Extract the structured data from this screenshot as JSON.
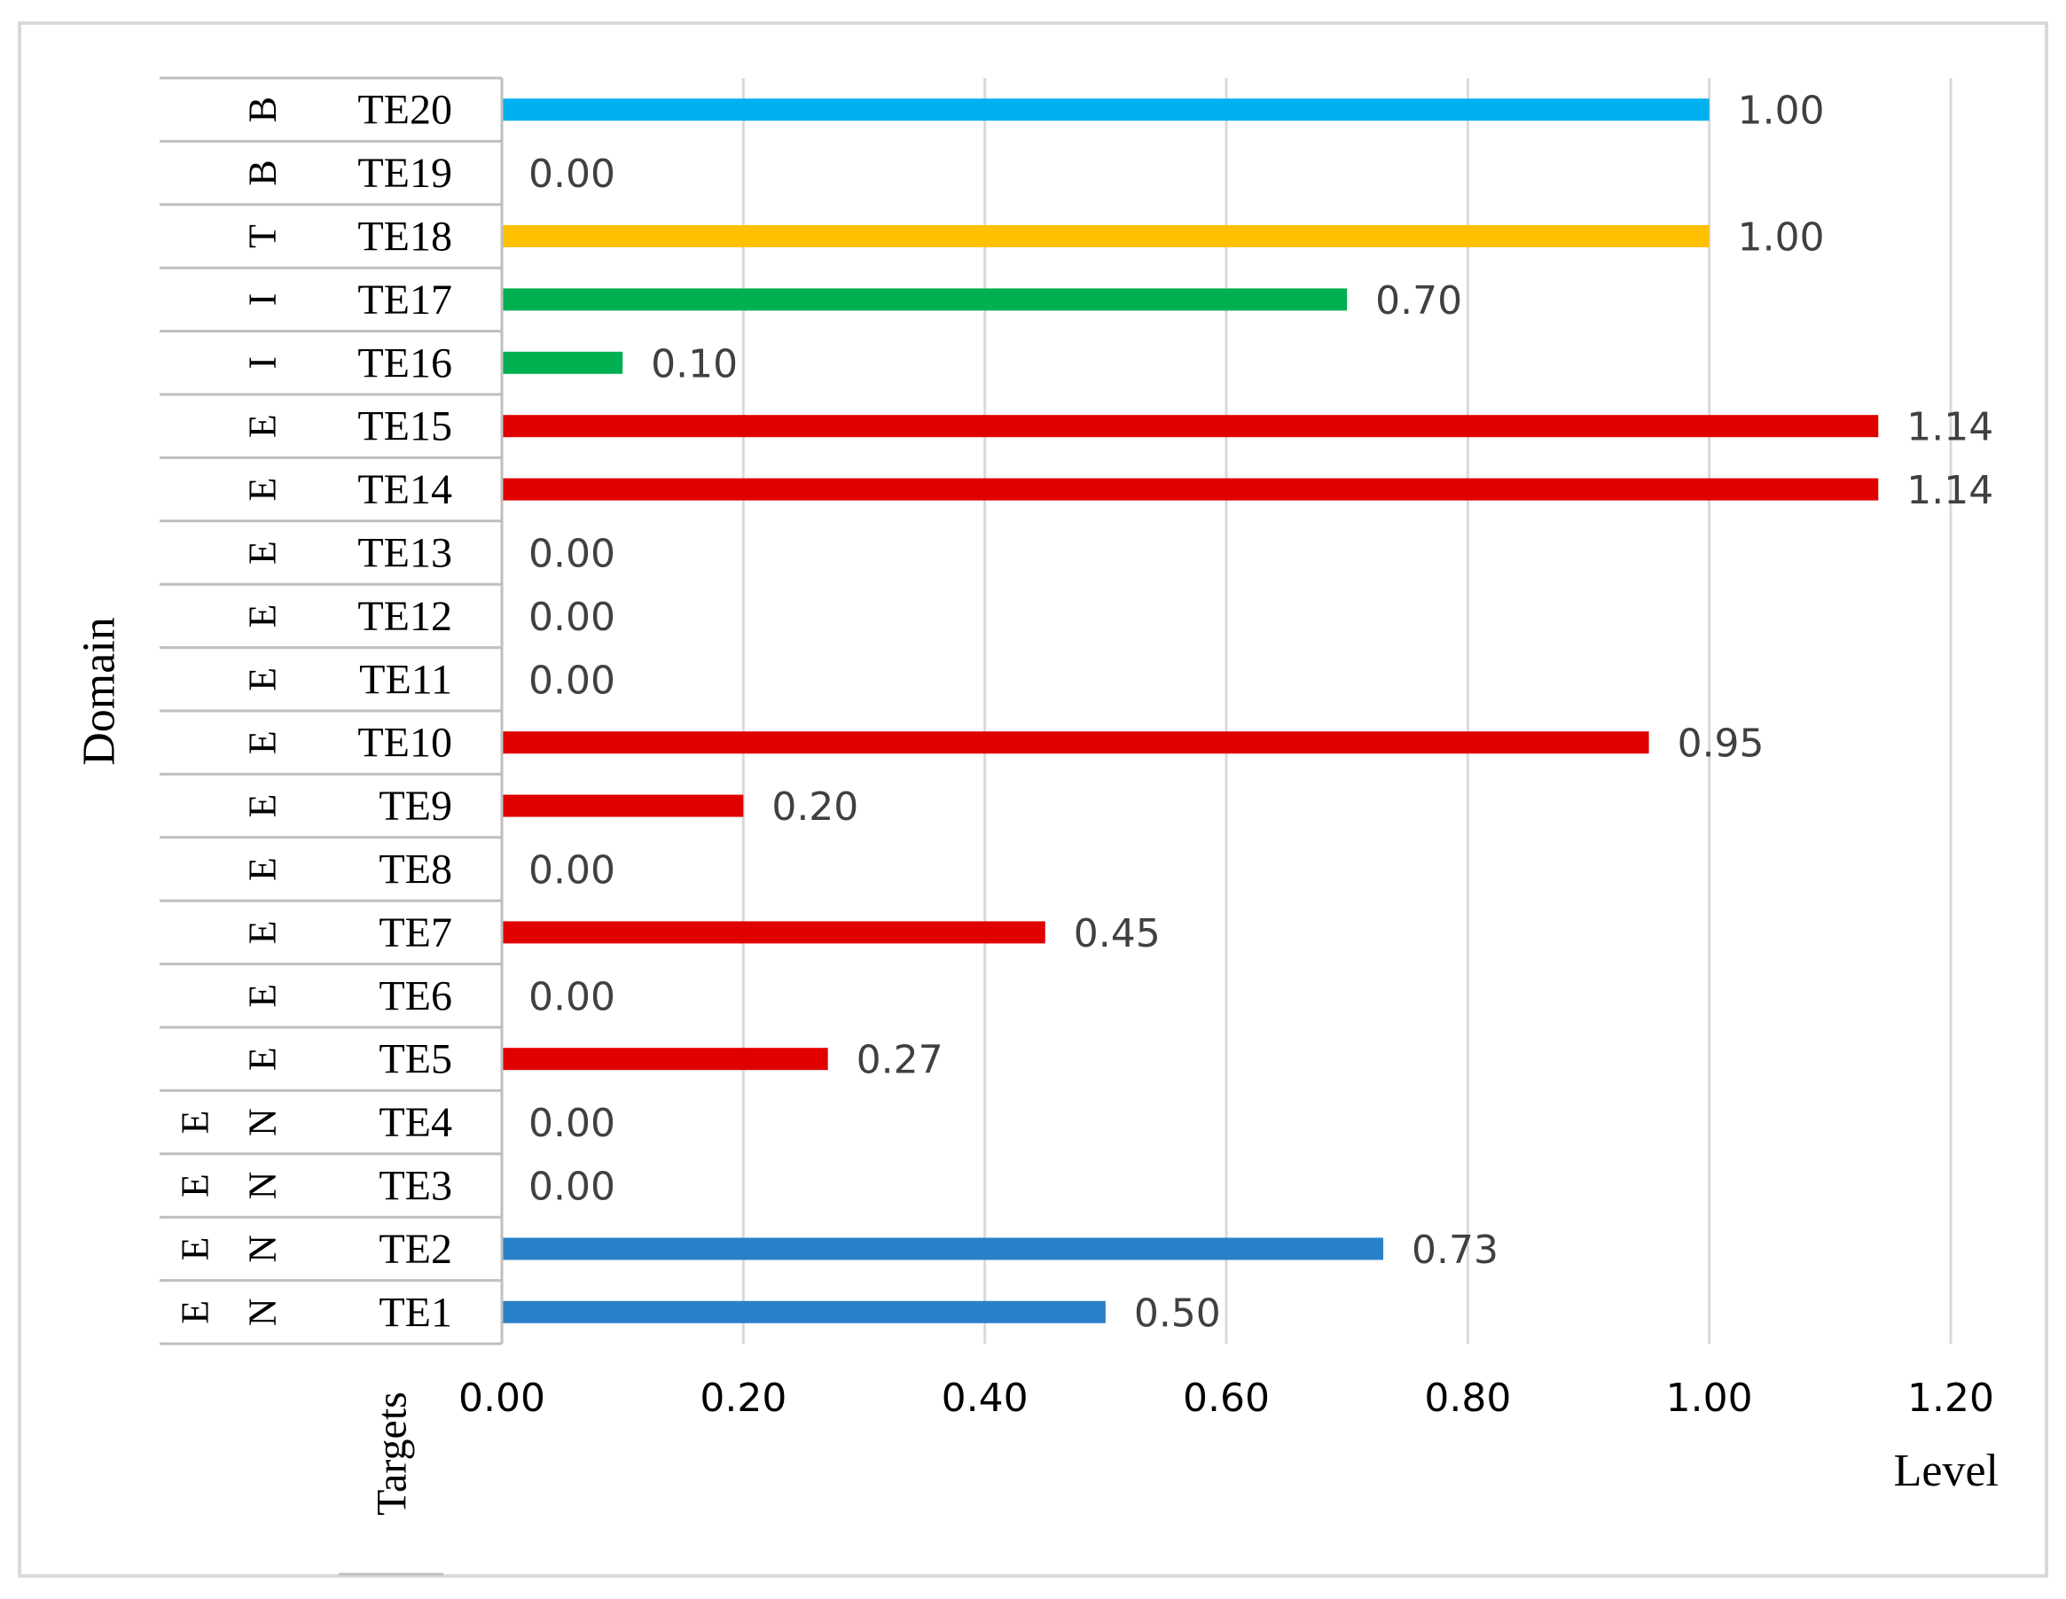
{
  "chart_data": {
    "type": "bar",
    "orientation": "horizontal",
    "title": "",
    "xlabel": "Level",
    "ylabel": "Domain",
    "targets_label": "Targets",
    "xlim": [
      0,
      1.2
    ],
    "xticks": [
      "0.00",
      "0.20",
      "0.40",
      "0.60",
      "0.80",
      "1.00",
      "1.20"
    ],
    "grid": true,
    "colors": {
      "B": "#00B0F0",
      "T": "#FFC000",
      "I": "#00B050",
      "E": "#E00000",
      "N": "#2880C8",
      "grid": "#d9d9d9",
      "text": "#404040"
    },
    "rows": [
      {
        "target": "TE20",
        "domain": [
          "B"
        ],
        "value": 1.0,
        "label": "1.00",
        "color_key": "B"
      },
      {
        "target": "TE19",
        "domain": [
          "B"
        ],
        "value": 0.0,
        "label": "0.00",
        "color_key": "B"
      },
      {
        "target": "TE18",
        "domain": [
          "T"
        ],
        "value": 1.0,
        "label": "1.00",
        "color_key": "T"
      },
      {
        "target": "TE17",
        "domain": [
          "I"
        ],
        "value": 0.7,
        "label": "0.70",
        "color_key": "I"
      },
      {
        "target": "TE16",
        "domain": [
          "I"
        ],
        "value": 0.1,
        "label": "0.10",
        "color_key": "I"
      },
      {
        "target": "TE15",
        "domain": [
          "E"
        ],
        "value": 1.14,
        "label": "1.14",
        "color_key": "E"
      },
      {
        "target": "TE14",
        "domain": [
          "E"
        ],
        "value": 1.14,
        "label": "1.14",
        "color_key": "E"
      },
      {
        "target": "TE13",
        "domain": [
          "E"
        ],
        "value": 0.0,
        "label": "0.00",
        "color_key": "E"
      },
      {
        "target": "TE12",
        "domain": [
          "E"
        ],
        "value": 0.0,
        "label": "0.00",
        "color_key": "E"
      },
      {
        "target": "TE11",
        "domain": [
          "E"
        ],
        "value": 0.0,
        "label": "0.00",
        "color_key": "E"
      },
      {
        "target": "TE10",
        "domain": [
          "E"
        ],
        "value": 0.95,
        "label": "0.95",
        "color_key": "E"
      },
      {
        "target": "TE9",
        "domain": [
          "E"
        ],
        "value": 0.2,
        "label": "0.20",
        "color_key": "E"
      },
      {
        "target": "TE8",
        "domain": [
          "E"
        ],
        "value": 0.0,
        "label": "0.00",
        "color_key": "E"
      },
      {
        "target": "TE7",
        "domain": [
          "E"
        ],
        "value": 0.45,
        "label": "0.45",
        "color_key": "E"
      },
      {
        "target": "TE6",
        "domain": [
          "E"
        ],
        "value": 0.0,
        "label": "0.00",
        "color_key": "E"
      },
      {
        "target": "TE5",
        "domain": [
          "E"
        ],
        "value": 0.27,
        "label": "0.27",
        "color_key": "E"
      },
      {
        "target": "TE4",
        "domain": [
          "E",
          "N"
        ],
        "value": 0.0,
        "label": "0.00",
        "color_key": "N"
      },
      {
        "target": "TE3",
        "domain": [
          "E",
          "N"
        ],
        "value": 0.0,
        "label": "0.00",
        "color_key": "N"
      },
      {
        "target": "TE2",
        "domain": [
          "E",
          "N"
        ],
        "value": 0.73,
        "label": "0.73",
        "color_key": "N"
      },
      {
        "target": "TE1",
        "domain": [
          "E",
          "N"
        ],
        "value": 0.5,
        "label": "0.50",
        "color_key": "N"
      }
    ]
  }
}
